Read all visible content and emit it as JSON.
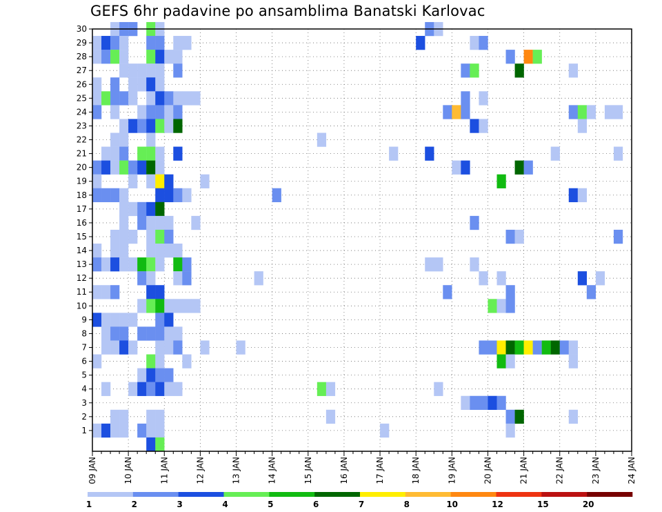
{
  "chart_data": {
    "type": "heatmap",
    "title": "GEFS 6hr padavine po ansamblima Banatski Karlovac",
    "y_categories": [
      "1",
      "2",
      "3",
      "4",
      "5",
      "6",
      "7",
      "8",
      "9",
      "10",
      "11",
      "12",
      "13",
      "14",
      "15",
      "16",
      "17",
      "18",
      "19",
      "20",
      "21",
      "22",
      "23",
      "24",
      "25",
      "26",
      "27",
      "28",
      "29",
      "30"
    ],
    "x_tick_labels": [
      "09 JAN",
      "10 JAN",
      "11 JAN",
      "12 JAN",
      "13 JAN",
      "14 JAN",
      "15 JAN",
      "16 JAN",
      "17 JAN",
      "18 JAN",
      "19 JAN",
      "20 JAN",
      "21 JAN",
      "22 JAN",
      "23 JAN",
      "24 JAN"
    ],
    "x_unit": "6-hour steps from 09 JAN 00Z",
    "x_range": [
      0,
      60
    ],
    "grid": true,
    "legend": {
      "position": "bottom",
      "tick_labels": [
        "1",
        "2",
        "3",
        "4",
        "5",
        "6",
        "7",
        "8",
        "10",
        "12",
        "15",
        "20"
      ],
      "colors": [
        "#b4c6f5",
        "#6a8ff0",
        "#1c4fe0",
        "#66ee55",
        "#11bb11",
        "#006600",
        "#ffee00",
        "#ffbb33",
        "#ff8811",
        "#ee3311",
        "#bb1111",
        "#770000"
      ]
    },
    "cells": [
      {
        "m": 30,
        "s": [
          [
            2,
            1
          ],
          [
            3,
            2
          ],
          [
            4,
            2
          ],
          [
            6,
            4
          ],
          [
            7,
            1
          ],
          [
            37,
            2
          ],
          [
            38,
            1
          ]
        ]
      },
      {
        "m": 29,
        "s": [
          [
            0,
            1
          ],
          [
            1,
            3
          ],
          [
            2,
            2
          ],
          [
            3,
            1
          ],
          [
            6,
            2
          ],
          [
            7,
            2
          ],
          [
            9,
            1
          ],
          [
            10,
            1
          ],
          [
            36,
            3
          ],
          [
            42,
            1
          ],
          [
            43,
            2
          ]
        ]
      },
      {
        "m": 28,
        "s": [
          [
            0,
            1
          ],
          [
            1,
            2
          ],
          [
            2,
            4
          ],
          [
            3,
            1
          ],
          [
            6,
            4
          ],
          [
            7,
            3
          ],
          [
            8,
            1
          ],
          [
            9,
            1
          ],
          [
            46,
            2
          ],
          [
            48,
            9
          ],
          [
            49,
            4
          ]
        ]
      },
      {
        "m": 27,
        "s": [
          [
            3,
            1
          ],
          [
            4,
            1
          ],
          [
            5,
            1
          ],
          [
            6,
            1
          ],
          [
            7,
            1
          ],
          [
            9,
            2
          ],
          [
            41,
            2
          ],
          [
            42,
            4
          ],
          [
            47,
            6
          ],
          [
            53,
            1
          ]
        ]
      },
      {
        "m": 26,
        "s": [
          [
            0,
            1
          ],
          [
            2,
            2
          ],
          [
            4,
            1
          ],
          [
            5,
            1
          ],
          [
            6,
            3
          ],
          [
            7,
            1
          ]
        ]
      },
      {
        "m": 25,
        "s": [
          [
            0,
            1
          ],
          [
            1,
            4
          ],
          [
            2,
            2
          ],
          [
            3,
            2
          ],
          [
            4,
            1
          ],
          [
            6,
            1
          ],
          [
            7,
            3
          ],
          [
            8,
            2
          ],
          [
            9,
            1
          ],
          [
            10,
            1
          ],
          [
            11,
            1
          ],
          [
            41,
            2
          ],
          [
            43,
            1
          ]
        ]
      },
      {
        "m": 24,
        "s": [
          [
            0,
            2
          ],
          [
            2,
            1
          ],
          [
            5,
            1
          ],
          [
            6,
            2
          ],
          [
            7,
            2
          ],
          [
            8,
            1
          ],
          [
            9,
            2
          ],
          [
            39,
            2
          ],
          [
            40,
            8
          ],
          [
            41,
            2
          ],
          [
            53,
            2
          ],
          [
            54,
            4
          ],
          [
            55,
            1
          ],
          [
            57,
            1
          ],
          [
            58,
            1
          ]
        ]
      },
      {
        "m": 23,
        "s": [
          [
            3,
            1
          ],
          [
            4,
            3
          ],
          [
            5,
            2
          ],
          [
            6,
            3
          ],
          [
            7,
            4
          ],
          [
            8,
            1
          ],
          [
            9,
            6
          ],
          [
            42,
            3
          ],
          [
            43,
            1
          ],
          [
            54,
            1
          ]
        ]
      },
      {
        "m": 22,
        "s": [
          [
            2,
            1
          ],
          [
            3,
            1
          ],
          [
            6,
            1
          ],
          [
            25,
            1
          ]
        ]
      },
      {
        "m": 21,
        "s": [
          [
            1,
            1
          ],
          [
            2,
            1
          ],
          [
            3,
            2
          ],
          [
            5,
            4
          ],
          [
            6,
            4
          ],
          [
            7,
            1
          ],
          [
            9,
            3
          ],
          [
            33,
            1
          ],
          [
            37,
            3
          ],
          [
            51,
            1
          ],
          [
            58,
            1
          ]
        ]
      },
      {
        "m": 20,
        "s": [
          [
            0,
            2
          ],
          [
            1,
            3
          ],
          [
            2,
            1
          ],
          [
            3,
            4
          ],
          [
            4,
            2
          ],
          [
            5,
            3
          ],
          [
            6,
            6
          ],
          [
            7,
            1
          ],
          [
            40,
            1
          ],
          [
            41,
            3
          ],
          [
            47,
            6
          ],
          [
            48,
            2
          ]
        ]
      },
      {
        "m": 19,
        "s": [
          [
            0,
            1
          ],
          [
            4,
            1
          ],
          [
            6,
            1
          ],
          [
            7,
            7
          ],
          [
            8,
            3
          ],
          [
            12,
            1
          ],
          [
            45,
            5
          ]
        ]
      },
      {
        "m": 18,
        "s": [
          [
            0,
            2
          ],
          [
            1,
            2
          ],
          [
            2,
            2
          ],
          [
            3,
            1
          ],
          [
            7,
            3
          ],
          [
            8,
            3
          ],
          [
            9,
            2
          ],
          [
            10,
            1
          ],
          [
            20,
            2
          ],
          [
            53,
            3
          ],
          [
            54,
            1
          ]
        ]
      },
      {
        "m": 17,
        "s": [
          [
            3,
            1
          ],
          [
            4,
            1
          ],
          [
            5,
            2
          ],
          [
            6,
            3
          ],
          [
            7,
            6
          ]
        ]
      },
      {
        "m": 16,
        "s": [
          [
            3,
            1
          ],
          [
            5,
            2
          ],
          [
            6,
            1
          ],
          [
            7,
            1
          ],
          [
            8,
            1
          ],
          [
            11,
            1
          ],
          [
            42,
            2
          ]
        ]
      },
      {
        "m": 15,
        "s": [
          [
            2,
            1
          ],
          [
            3,
            1
          ],
          [
            4,
            1
          ],
          [
            6,
            1
          ],
          [
            7,
            4
          ],
          [
            8,
            2
          ],
          [
            46,
            2
          ],
          [
            47,
            1
          ],
          [
            58,
            2
          ]
        ]
      },
      {
        "m": 14,
        "s": [
          [
            0,
            1
          ],
          [
            2,
            1
          ],
          [
            3,
            1
          ],
          [
            6,
            1
          ],
          [
            7,
            1
          ],
          [
            8,
            1
          ],
          [
            9,
            1
          ]
        ]
      },
      {
        "m": 13,
        "s": [
          [
            0,
            2
          ],
          [
            1,
            1
          ],
          [
            2,
            3
          ],
          [
            3,
            1
          ],
          [
            4,
            1
          ],
          [
            5,
            5
          ],
          [
            6,
            4
          ],
          [
            7,
            1
          ],
          [
            9,
            5
          ],
          [
            10,
            2
          ],
          [
            37,
            1
          ],
          [
            38,
            1
          ],
          [
            42,
            1
          ]
        ]
      },
      {
        "m": 12,
        "s": [
          [
            5,
            2
          ],
          [
            6,
            1
          ],
          [
            9,
            1
          ],
          [
            10,
            2
          ],
          [
            18,
            1
          ],
          [
            43,
            1
          ],
          [
            45,
            1
          ],
          [
            54,
            3
          ],
          [
            56,
            1
          ]
        ]
      },
      {
        "m": 11,
        "s": [
          [
            0,
            1
          ],
          [
            1,
            1
          ],
          [
            2,
            2
          ],
          [
            6,
            3
          ],
          [
            7,
            3
          ],
          [
            39,
            2
          ],
          [
            46,
            2
          ],
          [
            55,
            2
          ]
        ]
      },
      {
        "m": 10,
        "s": [
          [
            5,
            1
          ],
          [
            6,
            4
          ],
          [
            7,
            5
          ],
          [
            8,
            1
          ],
          [
            9,
            1
          ],
          [
            10,
            1
          ],
          [
            11,
            1
          ],
          [
            44,
            4
          ],
          [
            45,
            1
          ],
          [
            46,
            2
          ]
        ]
      },
      {
        "m": 9,
        "s": [
          [
            0,
            3
          ],
          [
            1,
            1
          ],
          [
            2,
            1
          ],
          [
            3,
            1
          ],
          [
            4,
            1
          ],
          [
            7,
            2
          ],
          [
            8,
            3
          ]
        ]
      },
      {
        "m": 8,
        "s": [
          [
            1,
            1
          ],
          [
            2,
            2
          ],
          [
            3,
            2
          ],
          [
            5,
            2
          ],
          [
            6,
            2
          ],
          [
            7,
            2
          ],
          [
            8,
            1
          ],
          [
            9,
            1
          ]
        ]
      },
      {
        "m": 7,
        "s": [
          [
            1,
            1
          ],
          [
            2,
            1
          ],
          [
            3,
            3
          ],
          [
            4,
            1
          ],
          [
            7,
            1
          ],
          [
            8,
            1
          ],
          [
            9,
            2
          ],
          [
            12,
            1
          ],
          [
            16,
            1
          ],
          [
            43,
            2
          ],
          [
            44,
            2
          ],
          [
            45,
            7
          ],
          [
            46,
            6
          ],
          [
            47,
            5
          ],
          [
            48,
            7
          ],
          [
            49,
            2
          ],
          [
            50,
            5
          ],
          [
            51,
            6
          ],
          [
            52,
            2
          ],
          [
            53,
            1
          ]
        ]
      },
      {
        "m": 6,
        "s": [
          [
            0,
            1
          ],
          [
            6,
            4
          ],
          [
            7,
            1
          ],
          [
            10,
            1
          ],
          [
            45,
            5
          ],
          [
            46,
            1
          ],
          [
            53,
            1
          ]
        ]
      },
      {
        "m": 5,
        "s": [
          [
            5,
            1
          ],
          [
            6,
            3
          ],
          [
            7,
            2
          ],
          [
            8,
            2
          ]
        ]
      },
      {
        "m": 4,
        "s": [
          [
            1,
            1
          ],
          [
            4,
            1
          ],
          [
            5,
            3
          ],
          [
            6,
            2
          ],
          [
            7,
            3
          ],
          [
            8,
            1
          ],
          [
            9,
            1
          ],
          [
            25,
            4
          ],
          [
            26,
            1
          ],
          [
            38,
            1
          ]
        ]
      },
      {
        "m": 3,
        "s": [
          [
            41,
            1
          ],
          [
            42,
            2
          ],
          [
            43,
            2
          ],
          [
            44,
            3
          ],
          [
            45,
            2
          ]
        ]
      },
      {
        "m": 2,
        "s": [
          [
            2,
            1
          ],
          [
            3,
            1
          ],
          [
            6,
            1
          ],
          [
            7,
            1
          ],
          [
            26,
            1
          ],
          [
            46,
            2
          ],
          [
            47,
            6
          ],
          [
            53,
            1
          ]
        ]
      },
      {
        "m": 1,
        "s": [
          [
            0,
            1
          ],
          [
            1,
            3
          ],
          [
            2,
            1
          ],
          [
            3,
            1
          ],
          [
            5,
            2
          ],
          [
            6,
            1
          ],
          [
            7,
            1
          ],
          [
            32,
            1
          ],
          [
            46,
            1
          ]
        ]
      },
      {
        "m": 0,
        "s": [
          [
            6,
            3
          ],
          [
            7,
            4
          ]
        ]
      }
    ]
  }
}
